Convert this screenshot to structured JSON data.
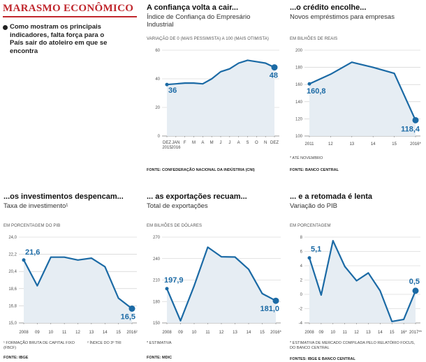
{
  "header": {
    "title": "MARASMO ECONÔMICO",
    "intro": "Como mostram os principais indicadores, falta força para o País sair do atoleiro em que se encontra"
  },
  "chart_data": [
    {
      "type": "line",
      "title": "A confiança volta a cair...",
      "subtitle": "Índice de Confiança do Empresário Industrial",
      "axis_label": "VARIAÇÃO DE 0 (MAIS PESSIMISTA) A 100 (MAIS OTIMISTA)",
      "categories": [
        "DEZ 2015",
        "JAN 2016",
        "F",
        "M",
        "A",
        "M",
        "J",
        "J",
        "A",
        "S",
        "O",
        "N",
        "DEZ"
      ],
      "values": [
        36,
        36.5,
        37,
        37,
        36.5,
        40,
        45,
        47,
        51,
        53,
        52,
        51,
        48
      ],
      "value_labels": [
        "36",
        null,
        null,
        null,
        null,
        null,
        null,
        null,
        null,
        null,
        null,
        null,
        "48"
      ],
      "ylim": [
        0,
        60
      ],
      "yticks": [
        0,
        20,
        40,
        60
      ],
      "grid": true,
      "color": "#1b6aa5",
      "source": "FONTE: CONFEDERAÇÃO NACIONAL DA INDÚSTRIA (CNI)"
    },
    {
      "type": "line",
      "title": "...o crédito encolhe...",
      "subtitle": "Novos empréstimos para empresas",
      "axis_label": "EM BILHÕES DE REAIS",
      "categories": [
        "2011",
        "12",
        "13",
        "14",
        "15",
        "2016*"
      ],
      "values": [
        160.8,
        172,
        186,
        180,
        173,
        118.4
      ],
      "value_labels": [
        "160,8",
        null,
        null,
        null,
        null,
        "118,4"
      ],
      "ylim": [
        100,
        200
      ],
      "yticks": [
        100,
        120,
        140,
        160,
        180,
        200
      ],
      "grid": true,
      "color": "#1b6aa5",
      "footnotes": [
        "* ATÉ NOVEMBRO"
      ],
      "source": "FONTE: BANCO CENTRAL"
    },
    {
      "type": "line",
      "title": "...os investimentos despencam...",
      "subtitle": "Taxa de investimento¹",
      "axis_label": "EM PORCENTAGEM DO PIB",
      "categories": [
        "2008",
        "09",
        "10",
        "11",
        "12",
        "13",
        "14",
        "15",
        "2016²"
      ],
      "values": [
        21.6,
        18.9,
        21.9,
        21.9,
        21.6,
        21.8,
        20.9,
        17.6,
        16.5
      ],
      "value_labels": [
        "21,6",
        null,
        null,
        null,
        null,
        null,
        null,
        null,
        "16,5"
      ],
      "ylim": [
        15,
        24
      ],
      "yticks": [
        {
          "value": 15,
          "label": "15,0"
        },
        {
          "value": 16.8,
          "label": "16,8"
        },
        {
          "value": 18.6,
          "label": "18,6"
        },
        {
          "value": 20.4,
          "label": "20,4"
        },
        {
          "value": 22.2,
          "label": "22,2"
        },
        {
          "value": 24,
          "label": "24,0"
        }
      ],
      "grid": true,
      "color": "#1b6aa5",
      "footnotes": [
        "¹ FORMAÇÃO BRUTA DE CAPITAL FIXO (FBCF)",
        "² ÍNDICE DO 3º TRI"
      ],
      "source": "FONTE: IBGE"
    },
    {
      "type": "line",
      "title": "... as exportações recuam...",
      "subtitle": "Total de exportações",
      "axis_label": "EM BILHÕES DE DÓLARES",
      "categories": [
        "2008",
        "09",
        "10",
        "11",
        "12",
        "13",
        "14",
        "15",
        "2016*"
      ],
      "values": [
        197.9,
        153,
        201.9,
        256,
        242.6,
        242.2,
        225,
        191.1,
        181.0
      ],
      "value_labels": [
        "197,9",
        null,
        null,
        null,
        null,
        null,
        null,
        null,
        "181,0"
      ],
      "ylim": [
        150,
        270
      ],
      "yticks": [
        150,
        180,
        210,
        240,
        270
      ],
      "grid": true,
      "color": "#1b6aa5",
      "footnotes": [
        "* ESTIMATIVA"
      ],
      "source": "FONTE: MDIC"
    },
    {
      "type": "line",
      "title": "... e a retomada é lenta",
      "subtitle": "Variação do PIB",
      "axis_label": "EM PORCENTAGEM",
      "categories": [
        "2008",
        "09",
        "10",
        "11",
        "12",
        "13",
        "14",
        "15",
        "16*",
        "2017**"
      ],
      "values": [
        5.1,
        -0.1,
        7.5,
        3.9,
        1.9,
        3.0,
        0.5,
        -3.8,
        -3.5,
        0.5
      ],
      "value_labels": [
        "5,1",
        null,
        null,
        null,
        null,
        null,
        null,
        null,
        null,
        "0,5"
      ],
      "ylim": [
        -4,
        8
      ],
      "yticks": [
        -4,
        -2,
        0,
        2,
        4,
        6,
        8
      ],
      "grid": true,
      "color": "#1b6aa5",
      "footnotes": [
        "* ESTIMATIVA DE MERCADO COMPILADA PELO RELATÓRIO FOCUS, DO BANCO CENTRAL"
      ],
      "source": "FONTES: IBGE E BANCO CENTRAL"
    }
  ]
}
